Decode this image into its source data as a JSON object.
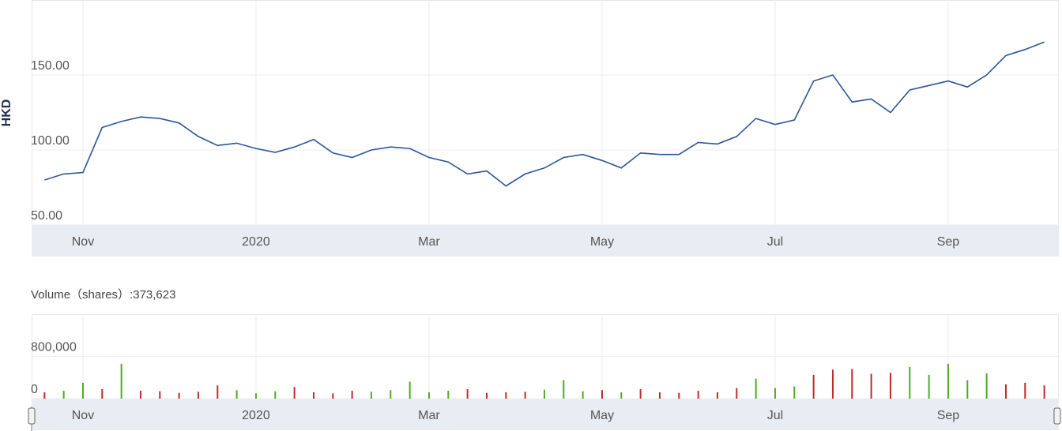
{
  "chart_data": [
    {
      "type": "line",
      "y_label": "HKD",
      "categories": [
        null,
        null,
        "Nov",
        null,
        null,
        null,
        null,
        null,
        null,
        null,
        null,
        "2020",
        null,
        null,
        null,
        null,
        null,
        null,
        null,
        null,
        "Mar",
        null,
        null,
        null,
        null,
        null,
        null,
        null,
        null,
        "May",
        null,
        null,
        null,
        null,
        null,
        null,
        null,
        null,
        "Jul",
        null,
        null,
        null,
        null,
        null,
        null,
        null,
        null,
        "Sep",
        null,
        null,
        null,
        null,
        null
      ],
      "values": [
        80,
        84,
        85,
        115,
        119,
        122,
        121,
        118,
        109,
        103,
        104.5,
        101,
        98.4,
        102,
        107,
        98,
        95,
        100,
        102,
        101,
        95,
        92,
        84,
        86,
        76,
        84,
        88,
        95,
        97,
        93,
        88,
        98,
        97,
        97,
        105,
        104,
        109,
        121,
        117,
        120,
        146,
        150,
        132,
        134,
        125,
        140,
        143,
        146,
        142,
        150,
        163,
        167,
        172
      ],
      "color": "#2c5697",
      "ylim": [
        50,
        200
      ],
      "yticks": [
        {
          "value": 50,
          "label": "50.00"
        },
        {
          "value": 100,
          "label": "100.00"
        },
        {
          "value": 150,
          "label": "150.00"
        }
      ],
      "grid": true
    },
    {
      "type": "bar",
      "title": "Volume（shares）:373,623",
      "categories": [
        null,
        null,
        "Nov",
        null,
        null,
        null,
        null,
        null,
        null,
        null,
        null,
        "2020",
        null,
        null,
        null,
        null,
        null,
        null,
        null,
        null,
        "Mar",
        null,
        null,
        null,
        null,
        null,
        null,
        null,
        null,
        "May",
        null,
        null,
        null,
        null,
        null,
        null,
        null,
        null,
        "Jul",
        null,
        null,
        null,
        null,
        null,
        null,
        null,
        null,
        "Sep",
        null,
        null,
        null,
        null,
        null
      ],
      "values": [
        120000,
        150000,
        300000,
        180000,
        660000,
        150000,
        140000,
        110000,
        130000,
        250000,
        160000,
        100000,
        140000,
        220000,
        120000,
        100000,
        150000,
        130000,
        160000,
        320000,
        120000,
        150000,
        180000,
        110000,
        120000,
        130000,
        170000,
        350000,
        140000,
        160000,
        120000,
        180000,
        120000,
        110000,
        150000,
        120000,
        200000,
        380000,
        200000,
        230000,
        450000,
        550000,
        560000,
        470000,
        490000,
        600000,
        450000,
        660000,
        350000,
        480000,
        270000,
        300000,
        250000
      ],
      "colors": [
        "#c62828",
        "#4caf1f",
        "#4caf1f",
        "#c62828",
        "#4caf1f",
        "#c62828",
        "#c62828",
        "#c62828",
        "#c62828",
        "#c62828",
        "#4caf1f",
        "#4caf1f",
        "#4caf1f",
        "#c62828",
        "#c62828",
        "#c62828",
        "#c62828",
        "#4caf1f",
        "#4caf1f",
        "#4caf1f",
        "#4caf1f",
        "#4caf1f",
        "#c62828",
        "#c62828",
        "#c62828",
        "#c62828",
        "#4caf1f",
        "#4caf1f",
        "#4caf1f",
        "#c62828",
        "#4caf1f",
        "#c62828",
        "#c62828",
        "#c62828",
        "#c62828",
        "#c62828",
        "#c62828",
        "#4caf1f",
        "#4caf1f",
        "#4caf1f",
        "#c62828",
        "#c62828",
        "#c62828",
        "#c62828",
        "#c62828",
        "#4caf1f",
        "#4caf1f",
        "#4caf1f",
        "#4caf1f",
        "#4caf1f",
        "#c62828",
        "#c62828",
        "#c62828"
      ],
      "ylim": [
        0,
        1600000
      ],
      "yticks": [
        0,
        {
          "value": 800000,
          "label": "800,000"
        }
      ],
      "grid": true
    }
  ]
}
